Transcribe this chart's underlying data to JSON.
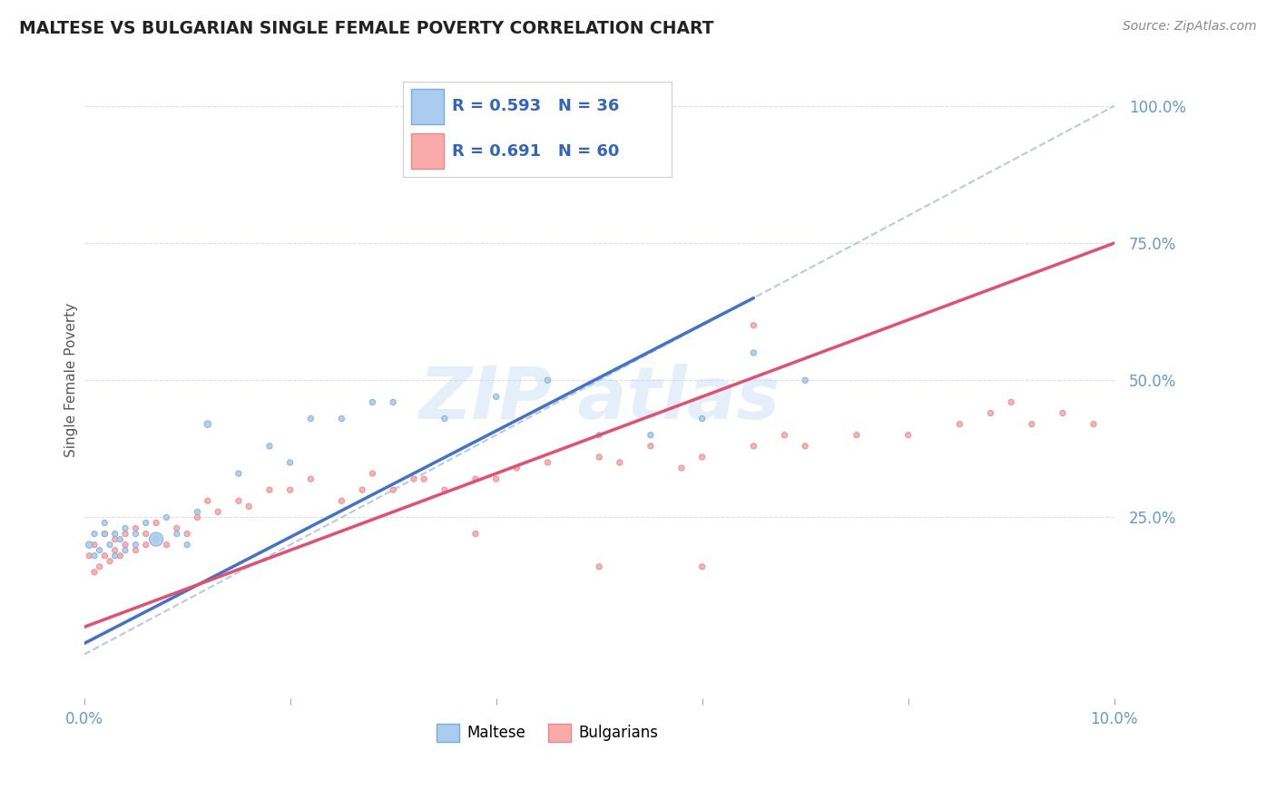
{
  "title": "MALTESE VS BULGARIAN SINGLE FEMALE POVERTY CORRELATION CHART",
  "source_text": "Source: ZipAtlas.com",
  "ylabel": "Single Female Poverty",
  "xlim": [
    0.0,
    0.1
  ],
  "ylim": [
    -0.08,
    1.08
  ],
  "ytick_labels": [
    "25.0%",
    "50.0%",
    "75.0%",
    "100.0%"
  ],
  "ytick_positions": [
    0.25,
    0.5,
    0.75,
    1.0
  ],
  "maltese_color": "#aaccee",
  "bulgarian_color": "#f9aaaa",
  "maltese_edge": "#7aabdd",
  "bulgarian_edge": "#e88888",
  "trend_blue": "#4472c4",
  "trend_pink": "#e05070",
  "diag_color": "#aabbdd",
  "legend_r_maltese": "R = 0.593",
  "legend_n_maltese": "N = 36",
  "legend_r_bulgarian": "R = 0.691",
  "legend_n_bulgarian": "N = 60",
  "legend_label_maltese": "Maltese",
  "legend_label_bulgarian": "Bulgarians",
  "grid_color": "#ddddee",
  "tick_color": "#6699cc",
  "title_color": "#222222",
  "source_color": "#888888",
  "ylabel_color": "#555555",
  "watermark_color": "#cce0f5",
  "maltese_x": [
    0.0005,
    0.001,
    0.001,
    0.0015,
    0.002,
    0.002,
    0.0025,
    0.003,
    0.003,
    0.0035,
    0.004,
    0.004,
    0.005,
    0.005,
    0.006,
    0.007,
    0.008,
    0.009,
    0.01,
    0.011,
    0.012,
    0.015,
    0.018,
    0.02,
    0.022,
    0.025,
    0.028,
    0.03,
    0.035,
    0.04,
    0.045,
    0.05,
    0.055,
    0.06,
    0.065,
    0.07
  ],
  "maltese_y": [
    0.2,
    0.18,
    0.22,
    0.19,
    0.22,
    0.24,
    0.2,
    0.18,
    0.22,
    0.21,
    0.19,
    0.23,
    0.2,
    0.22,
    0.24,
    0.21,
    0.25,
    0.22,
    0.2,
    0.26,
    0.42,
    0.33,
    0.38,
    0.35,
    0.43,
    0.43,
    0.46,
    0.46,
    0.43,
    0.47,
    0.5,
    0.4,
    0.4,
    0.43,
    0.55,
    0.5
  ],
  "maltese_sizes": [
    30,
    20,
    20,
    20,
    20,
    20,
    20,
    20,
    20,
    20,
    20,
    20,
    20,
    20,
    20,
    120,
    20,
    20,
    20,
    20,
    30,
    20,
    20,
    20,
    20,
    20,
    20,
    20,
    20,
    20,
    20,
    20,
    20,
    20,
    20,
    20
  ],
  "bulgarian_x": [
    0.0005,
    0.001,
    0.001,
    0.0015,
    0.002,
    0.002,
    0.0025,
    0.003,
    0.003,
    0.0035,
    0.004,
    0.004,
    0.005,
    0.005,
    0.006,
    0.006,
    0.007,
    0.007,
    0.008,
    0.009,
    0.01,
    0.011,
    0.012,
    0.013,
    0.015,
    0.016,
    0.018,
    0.02,
    0.022,
    0.025,
    0.027,
    0.028,
    0.03,
    0.032,
    0.033,
    0.035,
    0.038,
    0.04,
    0.042,
    0.045,
    0.05,
    0.052,
    0.055,
    0.058,
    0.06,
    0.065,
    0.065,
    0.068,
    0.07,
    0.075,
    0.08,
    0.085,
    0.088,
    0.09,
    0.092,
    0.095,
    0.098,
    0.038,
    0.05,
    0.06
  ],
  "bulgarian_y": [
    0.18,
    0.15,
    0.2,
    0.16,
    0.18,
    0.22,
    0.17,
    0.19,
    0.21,
    0.18,
    0.2,
    0.22,
    0.19,
    0.23,
    0.2,
    0.22,
    0.21,
    0.24,
    0.2,
    0.23,
    0.22,
    0.25,
    0.28,
    0.26,
    0.28,
    0.27,
    0.3,
    0.3,
    0.32,
    0.28,
    0.3,
    0.33,
    0.3,
    0.32,
    0.32,
    0.3,
    0.32,
    0.32,
    0.34,
    0.35,
    0.36,
    0.35,
    0.38,
    0.34,
    0.36,
    0.6,
    0.38,
    0.4,
    0.38,
    0.4,
    0.4,
    0.42,
    0.44,
    0.46,
    0.42,
    0.44,
    0.42,
    0.22,
    0.16,
    0.16
  ],
  "bulgarian_sizes": [
    20,
    20,
    20,
    20,
    20,
    20,
    20,
    20,
    20,
    20,
    20,
    20,
    20,
    20,
    20,
    20,
    20,
    20,
    20,
    20,
    20,
    20,
    20,
    20,
    20,
    20,
    20,
    20,
    20,
    20,
    20,
    20,
    20,
    20,
    20,
    20,
    20,
    20,
    20,
    20,
    20,
    20,
    20,
    20,
    20,
    20,
    20,
    20,
    20,
    20,
    20,
    20,
    20,
    20,
    20,
    20,
    20,
    20,
    20,
    20
  ],
  "blue_trend_x0": 0.0,
  "blue_trend_y0": 0.02,
  "blue_trend_x1": 0.065,
  "blue_trend_y1": 0.65,
  "pink_trend_x0": 0.0,
  "pink_trend_y0": 0.05,
  "pink_trend_x1": 0.1,
  "pink_trend_y1": 0.75
}
